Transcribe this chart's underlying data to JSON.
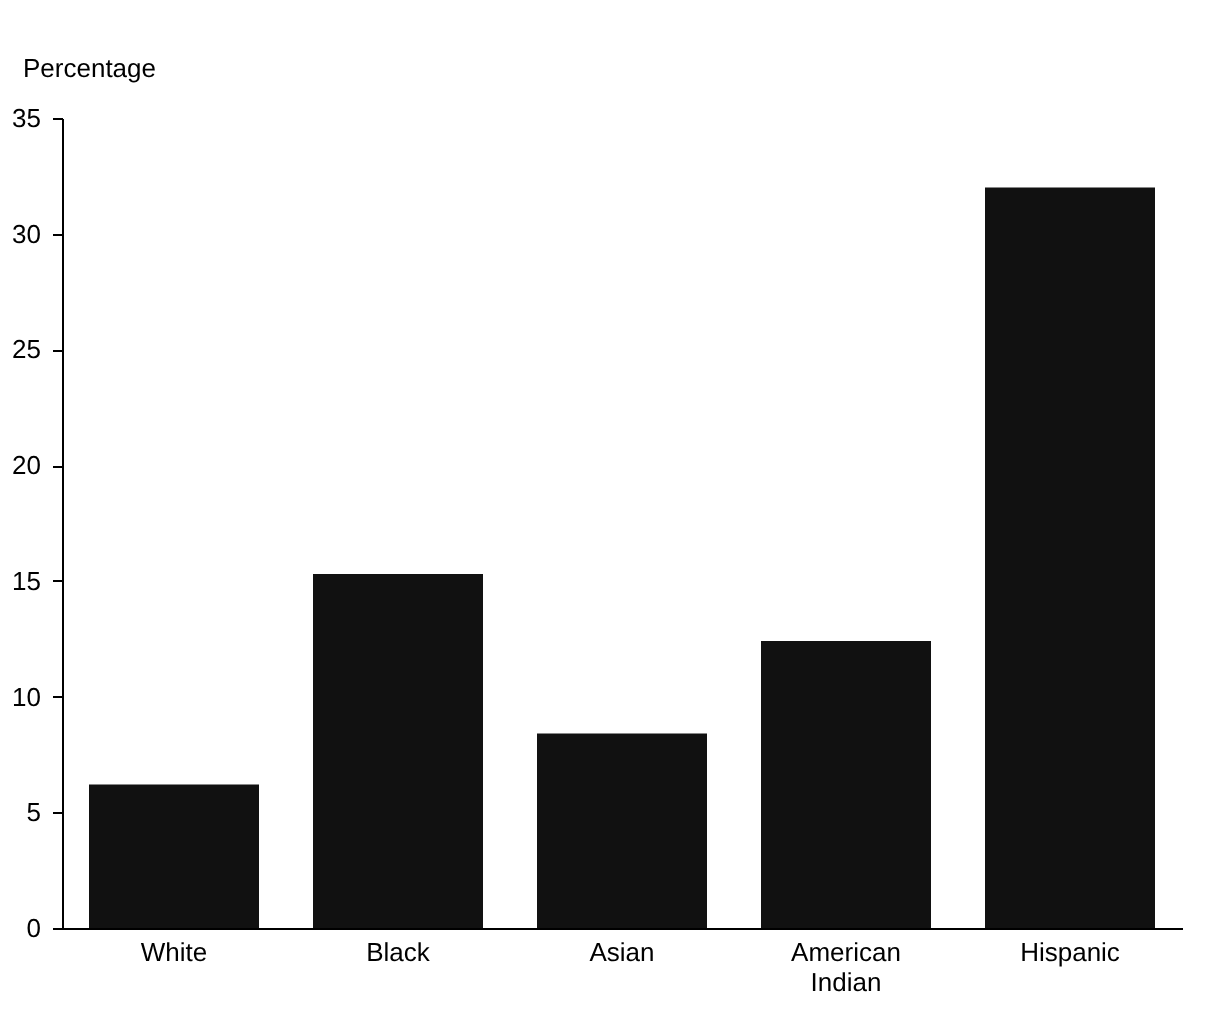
{
  "chart_data": {
    "type": "bar",
    "ylabel": "Percentage",
    "categories": [
      "White",
      "Black",
      "Asian",
      "American Indian",
      "Hispanic"
    ],
    "values": [
      6.2,
      15.3,
      8.4,
      12.4,
      32.0
    ],
    "color": "#111111",
    "ylim": [
      0,
      35
    ],
    "yticks": [
      0,
      5,
      10,
      15,
      20,
      25,
      30,
      35
    ],
    "grid": false
  }
}
